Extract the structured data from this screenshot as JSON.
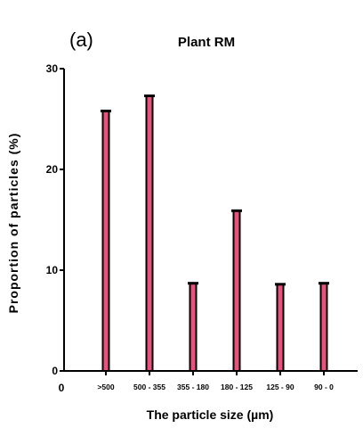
{
  "panel_label": "(a)",
  "origin_label": "0",
  "chart_data": {
    "type": "bar",
    "title": "Plant RM",
    "xlabel": "The particle size (µm)",
    "ylabel": "Proportion of particles (%)",
    "categories": [
      ">500",
      "500 - 355",
      "355 - 180",
      "180 - 125",
      "125 - 90",
      "90 - 0"
    ],
    "values": [
      25.8,
      27.3,
      8.7,
      15.9,
      8.6,
      8.7
    ],
    "yticks": [
      0,
      10,
      20,
      30
    ],
    "ylim": [
      0,
      30
    ],
    "grid": false,
    "legend": "none",
    "colors": {
      "bar_fill": "#e8527c",
      "bar_outline": "#000000",
      "axis": "#000000"
    }
  }
}
